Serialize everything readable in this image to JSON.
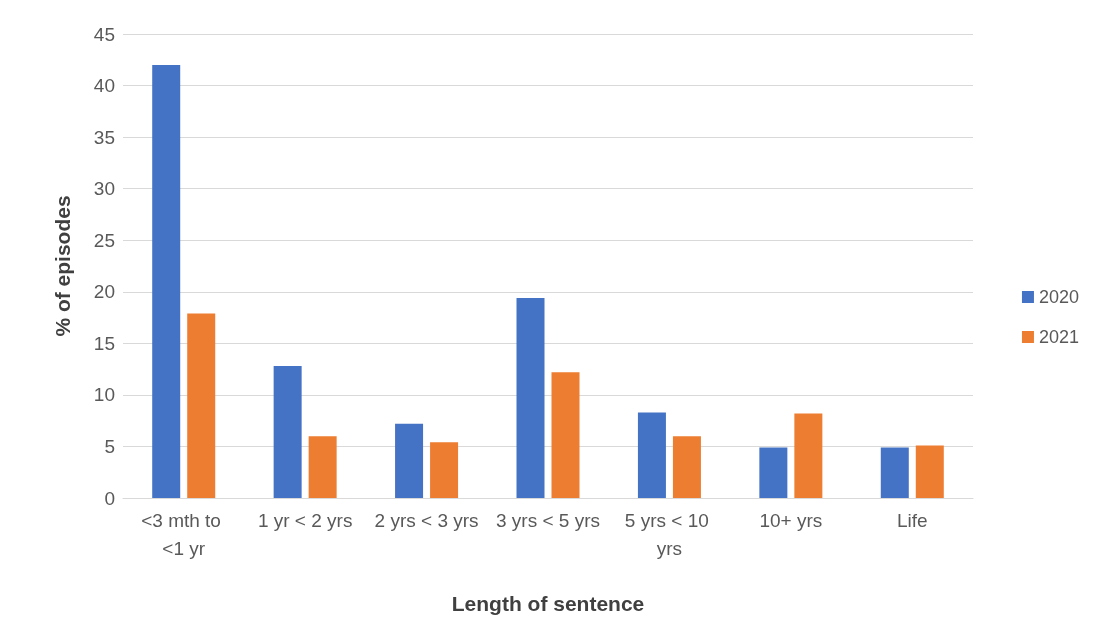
{
  "chart_data": {
    "type": "bar",
    "xlabel": "Length of sentence",
    "ylabel": "% of episodes",
    "categories": [
      "<3 mth to <1 yr",
      "1 yr < 2 yrs",
      "2 yrs < 3 yrs",
      "3 yrs < 5 yrs",
      "5 yrs < 10 yrs",
      "10+ yrs",
      "Life"
    ],
    "series": [
      {
        "name": "2020",
        "color": "#4472c4",
        "values": [
          42,
          12.8,
          7.2,
          19.4,
          8.3,
          4.9,
          4.9
        ]
      },
      {
        "name": "2021",
        "color": "#ed7d31",
        "values": [
          17.9,
          6.0,
          5.4,
          12.2,
          6.0,
          8.2,
          5.1
        ]
      }
    ],
    "ylim": [
      0,
      45
    ],
    "yticks": [
      0,
      5,
      10,
      15,
      20,
      25,
      30,
      35,
      40,
      45
    ],
    "grid": "y",
    "legend": "right"
  }
}
